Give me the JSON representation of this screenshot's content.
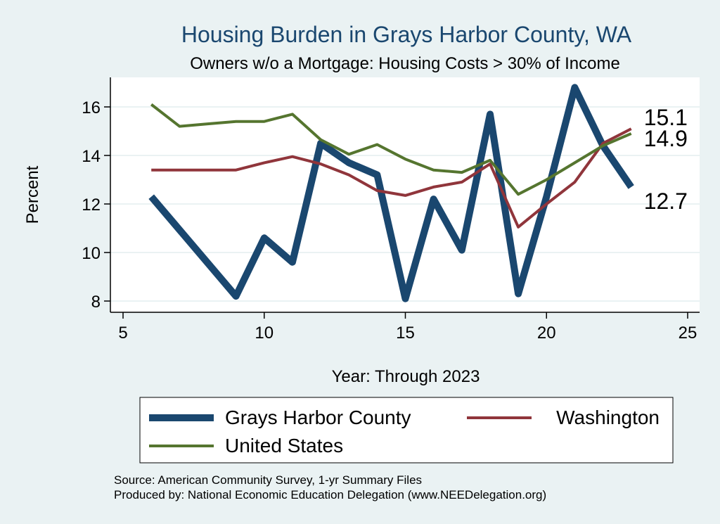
{
  "chart_data": {
    "type": "line",
    "title": "Housing Burden in Grays Harbor County, WA",
    "subtitle": "Owners w/o a Mortgage: Housing Costs > 30% of Income",
    "xlabel": "Year: Through 2023",
    "ylabel": "Percent",
    "xlim": [
      5,
      25
    ],
    "ylim": [
      7.6,
      17.2
    ],
    "xticks": [
      5,
      10,
      15,
      20,
      25
    ],
    "yticks": [
      8,
      10,
      12,
      14,
      16
    ],
    "grid": true,
    "legend_position": "bottom",
    "series": [
      {
        "name": "Grays Harbor County",
        "color": "#1a476f",
        "x": [
          6,
          9,
          10,
          11,
          12,
          13,
          14,
          15,
          16,
          17,
          18,
          19,
          20,
          21,
          22,
          23
        ],
        "y": [
          12.3,
          8.2,
          10.6,
          9.6,
          14.5,
          13.7,
          13.2,
          8.1,
          12.2,
          10.1,
          15.7,
          8.3,
          12.3,
          16.8,
          14.4,
          12.7
        ],
        "end_label": "12.7"
      },
      {
        "name": "Washington",
        "color": "#90353b",
        "x": [
          6,
          9,
          10,
          11,
          12,
          13,
          14,
          15,
          16,
          17,
          18,
          19,
          20,
          21,
          22,
          23
        ],
        "y": [
          13.4,
          13.4,
          13.7,
          13.95,
          13.65,
          13.2,
          12.55,
          12.35,
          12.7,
          12.9,
          13.65,
          11.05,
          12.0,
          12.9,
          14.5,
          15.1
        ],
        "end_label": "15.1"
      },
      {
        "name": "United States",
        "color": "#55752f",
        "x": [
          6,
          7,
          8,
          9,
          10,
          11,
          12,
          13,
          14,
          15,
          16,
          17,
          18,
          19,
          20,
          21,
          22,
          23
        ],
        "y": [
          16.1,
          15.2,
          15.3,
          15.4,
          15.4,
          15.7,
          14.65,
          14.05,
          14.45,
          13.85,
          13.4,
          13.3,
          13.8,
          12.4,
          13.0,
          13.7,
          14.4,
          14.9
        ],
        "end_label": "14.9"
      }
    ],
    "source": "Source: American Community Survey, 1-yr Summary Files",
    "producer": "Produced by: National Economic Education Delegation (www.NEEDelegation.org)"
  }
}
